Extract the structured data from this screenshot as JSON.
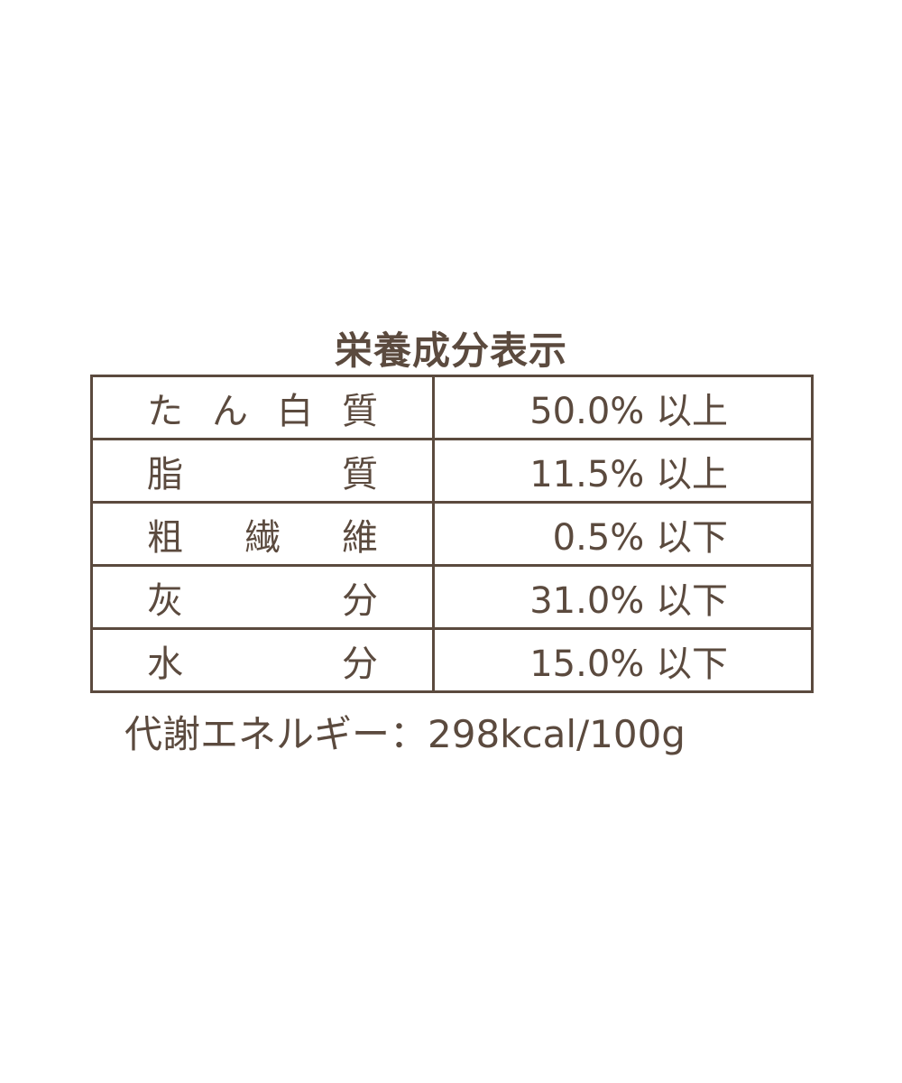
{
  "title": "栄養成分表示",
  "rows": [
    {
      "label": [
        "た",
        "ん",
        "白",
        "質"
      ],
      "value": "50.0% 以上"
    },
    {
      "label": [
        "脂",
        "質"
      ],
      "value": "11.5% 以上"
    },
    {
      "label": [
        "粗",
        "繊",
        "維"
      ],
      "value": "0.5% 以下"
    },
    {
      "label": [
        "灰",
        "分"
      ],
      "value": "31.0% 以下"
    },
    {
      "label": [
        "水",
        "分"
      ],
      "value": "15.0% 以下"
    }
  ],
  "footer": "代謝エネルギー：298kcal/100g",
  "colors": {
    "text": "#5b4a3e",
    "border": "#5b4a3e"
  }
}
